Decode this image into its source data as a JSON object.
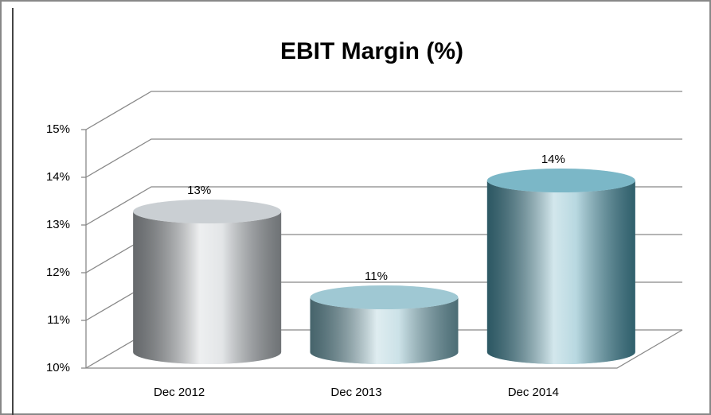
{
  "chart_data": {
    "type": "bar",
    "title": "EBIT Margin (%)",
    "categories": [
      "Dec 2012",
      "Dec 2013",
      "Dec 2014"
    ],
    "values": [
      12.95,
      11.15,
      13.6
    ],
    "value_labels": [
      "13%",
      "11%",
      "14%"
    ],
    "colors": [
      "#b9bfc4",
      "#7fb6c4",
      "#4f9fb4"
    ],
    "ylim": [
      10,
      15
    ],
    "yticks": [
      {
        "value": 10,
        "label": "10%"
      },
      {
        "value": 11,
        "label": "11%"
      },
      {
        "value": 12,
        "label": "12%"
      },
      {
        "value": 13,
        "label": "13%"
      },
      {
        "value": 14,
        "label": "14%"
      },
      {
        "value": 15,
        "label": "15%"
      }
    ],
    "grid": true
  }
}
